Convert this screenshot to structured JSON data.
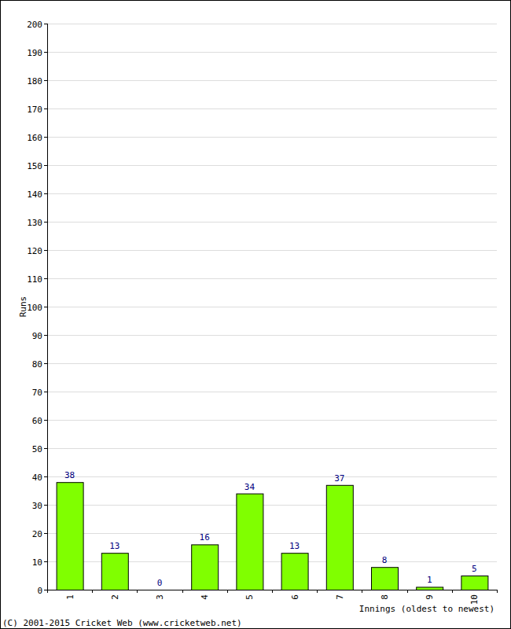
{
  "chart_data": {
    "type": "bar",
    "x_label": "Innings (oldest to newest)",
    "y_label": "Runs",
    "annotations": [
      "(C) 2001-2015 Cricket Web (www.cricketweb.net)"
    ],
    "categories": [
      "1",
      "2",
      "3",
      "4",
      "5",
      "6",
      "7",
      "8",
      "9",
      "10"
    ],
    "values": [
      38,
      13,
      0,
      16,
      34,
      13,
      37,
      8,
      1,
      5
    ],
    "color": "#80ff00",
    "ylim": [
      0,
      200
    ],
    "yticks": [
      0,
      10,
      20,
      30,
      40,
      50,
      60,
      70,
      80,
      90,
      100,
      110,
      120,
      130,
      140,
      150,
      160,
      170,
      180,
      190,
      200
    ],
    "grid": true,
    "data_labels": true
  }
}
